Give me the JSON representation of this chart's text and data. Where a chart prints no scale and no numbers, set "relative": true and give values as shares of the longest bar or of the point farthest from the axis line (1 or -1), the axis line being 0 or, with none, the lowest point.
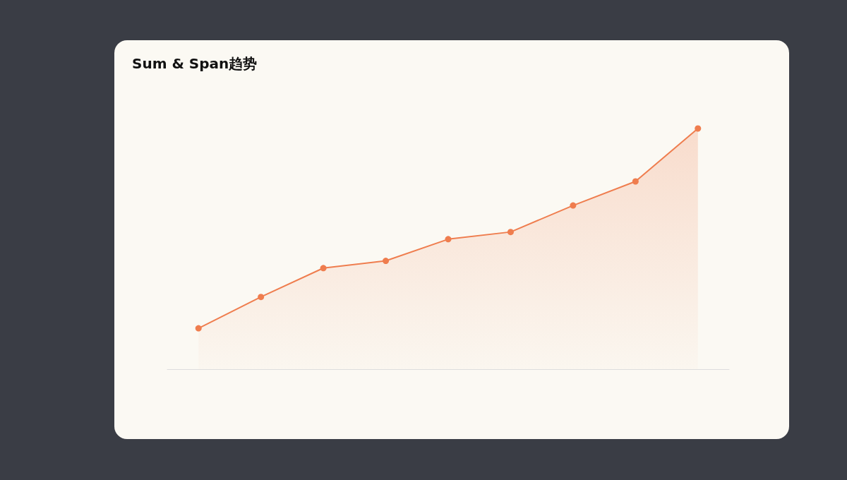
{
  "chart_data": {
    "type": "area",
    "title": "Sum & Span趋势",
    "relative": true,
    "categories": [
      null,
      null,
      null,
      null,
      null,
      null,
      null,
      null,
      null
    ],
    "series": [
      {
        "color": "#ef7d4e",
        "values": [
          0.17,
          0.3,
          0.42,
          0.45,
          0.54,
          0.57,
          0.68,
          0.78,
          1
        ]
      }
    ],
    "marker": "circle"
  }
}
